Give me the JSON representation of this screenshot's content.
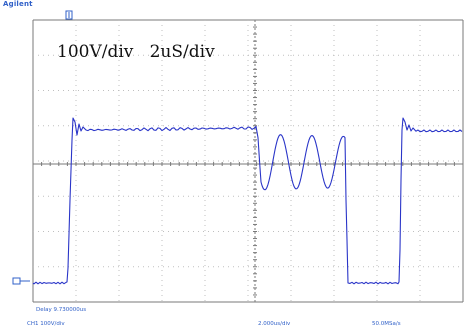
{
  "header": {
    "brand": "Agilent"
  },
  "annotation": {
    "volts_per_div": "100V/div",
    "time_per_div": "2uS/div"
  },
  "status": {
    "delay": "Delay 9.730000us",
    "channel_scale": "CH1 100V/div",
    "timebase": "2.000us/div",
    "sample_rate": "50.0MSa/s"
  },
  "colors": {
    "trace": "#2a35c8",
    "marker": "#3060c8",
    "grid": "#bfbfbf",
    "axis": "#7a7a7a",
    "background": "#ffffff"
  },
  "icons": {
    "trigger_marker": "trigger-position-icon",
    "ground_marker": "ground-reference-icon"
  }
}
